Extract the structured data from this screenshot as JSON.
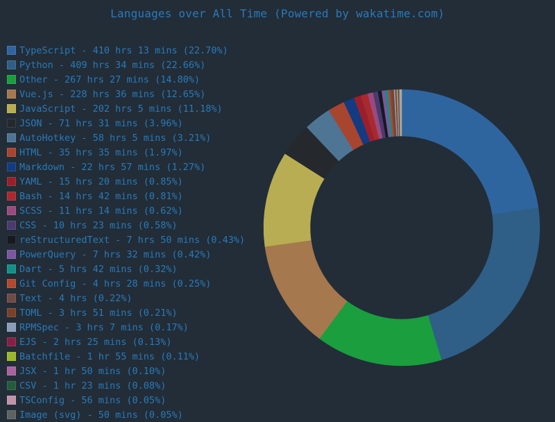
{
  "title": "Languages over All Time (Powered by wakatime.com)",
  "legend": [
    {
      "label": "TypeScript - 410 hrs 13 mins (22.70%)",
      "color": "#2f659f"
    },
    {
      "label": "Python - 409 hrs 34 mins (22.66%)",
      "color": "#2f5f87"
    },
    {
      "label": "Other - 267 hrs 27 mins (14.80%)",
      "color": "#1a9e3e"
    },
    {
      "label": "Vue.js - 228 hrs 36 mins (12.65%)",
      "color": "#a5784d"
    },
    {
      "label": "JavaScript - 202 hrs 5 mins (11.18%)",
      "color": "#b8ad52"
    },
    {
      "label": "JSON - 71 hrs 31 mins (3.96%)",
      "color": "#25282c"
    },
    {
      "label": "AutoHotkey - 58 hrs 5 mins (3.21%)",
      "color": "#4e7594"
    },
    {
      "label": "HTML - 35 hrs 35 mins (1.97%)",
      "color": "#a8452e"
    },
    {
      "label": "Markdown - 22 hrs 57 mins (1.27%)",
      "color": "#123b82"
    },
    {
      "label": "YAML - 15 hrs 20 mins (0.85%)",
      "color": "#9a1f2b"
    },
    {
      "label": "Bash - 14 hrs 42 mins (0.81%)",
      "color": "#a82a2f"
    },
    {
      "label": "SCSS - 11 hrs 14 mins (0.62%)",
      "color": "#9a4a7e"
    },
    {
      "label": "CSS - 10 hrs 23 mins (0.58%)",
      "color": "#4a3a70"
    },
    {
      "label": "reStructuredText - 7 hrs 50 mins (0.43%)",
      "color": "#16191d"
    },
    {
      "label": "PowerQuery - 7 hrs 32 mins (0.42%)",
      "color": "#7a579e"
    },
    {
      "label": "Dart - 5 hrs 42 mins (0.32%)",
      "color": "#138f86"
    },
    {
      "label": "Git Config - 4 hrs 28 mins (0.25%)",
      "color": "#b5472c"
    },
    {
      "label": "Text - 4 hrs (0.22%)",
      "color": "#6e4b44"
    },
    {
      "label": "TOML - 3 hrs 51 mins (0.21%)",
      "color": "#7a4028"
    },
    {
      "label": "RPMSpec - 3 hrs 7 mins (0.17%)",
      "color": "#8a9db8"
    },
    {
      "label": "EJS - 2 hrs 25 mins (0.13%)",
      "color": "#862047"
    },
    {
      "label": "Batchfile - 1 hr 55 mins (0.11%)",
      "color": "#9ab82a"
    },
    {
      "label": "JSX - 1 hr 50 mins (0.10%)",
      "color": "#a863a0"
    },
    {
      "label": "CSV - 1 hr 23 mins (0.08%)",
      "color": "#235c3b"
    },
    {
      "label": "TSConfig - 56 mins (0.05%)",
      "color": "#c193a8"
    },
    {
      "label": "Image (svg) - 50 mins (0.05%)",
      "color": "#5e6262"
    }
  ],
  "chart_data": {
    "type": "pie",
    "title": "Languages over All Time (Powered by wakatime.com)",
    "donut": true,
    "legend_position": "left",
    "categories": [
      "TypeScript",
      "Python",
      "Other",
      "Vue.js",
      "JavaScript",
      "JSON",
      "AutoHotkey",
      "HTML",
      "Markdown",
      "YAML",
      "Bash",
      "SCSS",
      "CSS",
      "reStructuredText",
      "PowerQuery",
      "Dart",
      "Git Config",
      "Text",
      "TOML",
      "RPMSpec",
      "EJS",
      "Batchfile",
      "JSX",
      "CSV",
      "TSConfig",
      "Image (svg)"
    ],
    "values": [
      22.7,
      22.66,
      14.8,
      12.65,
      11.18,
      3.96,
      3.21,
      1.97,
      1.27,
      0.85,
      0.81,
      0.62,
      0.58,
      0.43,
      0.42,
      0.32,
      0.25,
      0.22,
      0.21,
      0.17,
      0.13,
      0.11,
      0.1,
      0.08,
      0.05,
      0.05
    ],
    "durations": [
      "410 hrs 13 mins",
      "409 hrs 34 mins",
      "267 hrs 27 mins",
      "228 hrs 36 mins",
      "202 hrs 5 mins",
      "71 hrs 31 mins",
      "58 hrs 5 mins",
      "35 hrs 35 mins",
      "22 hrs 57 mins",
      "15 hrs 20 mins",
      "14 hrs 42 mins",
      "11 hrs 14 mins",
      "10 hrs 23 mins",
      "7 hrs 50 mins",
      "7 hrs 32 mins",
      "5 hrs 42 mins",
      "4 hrs 28 mins",
      "4 hrs",
      "3 hrs 51 mins",
      "3 hrs 7 mins",
      "2 hrs 25 mins",
      "1 hr 55 mins",
      "1 hr 50 mins",
      "1 hr 23 mins",
      "56 mins",
      "50 mins"
    ],
    "unit": "%"
  }
}
